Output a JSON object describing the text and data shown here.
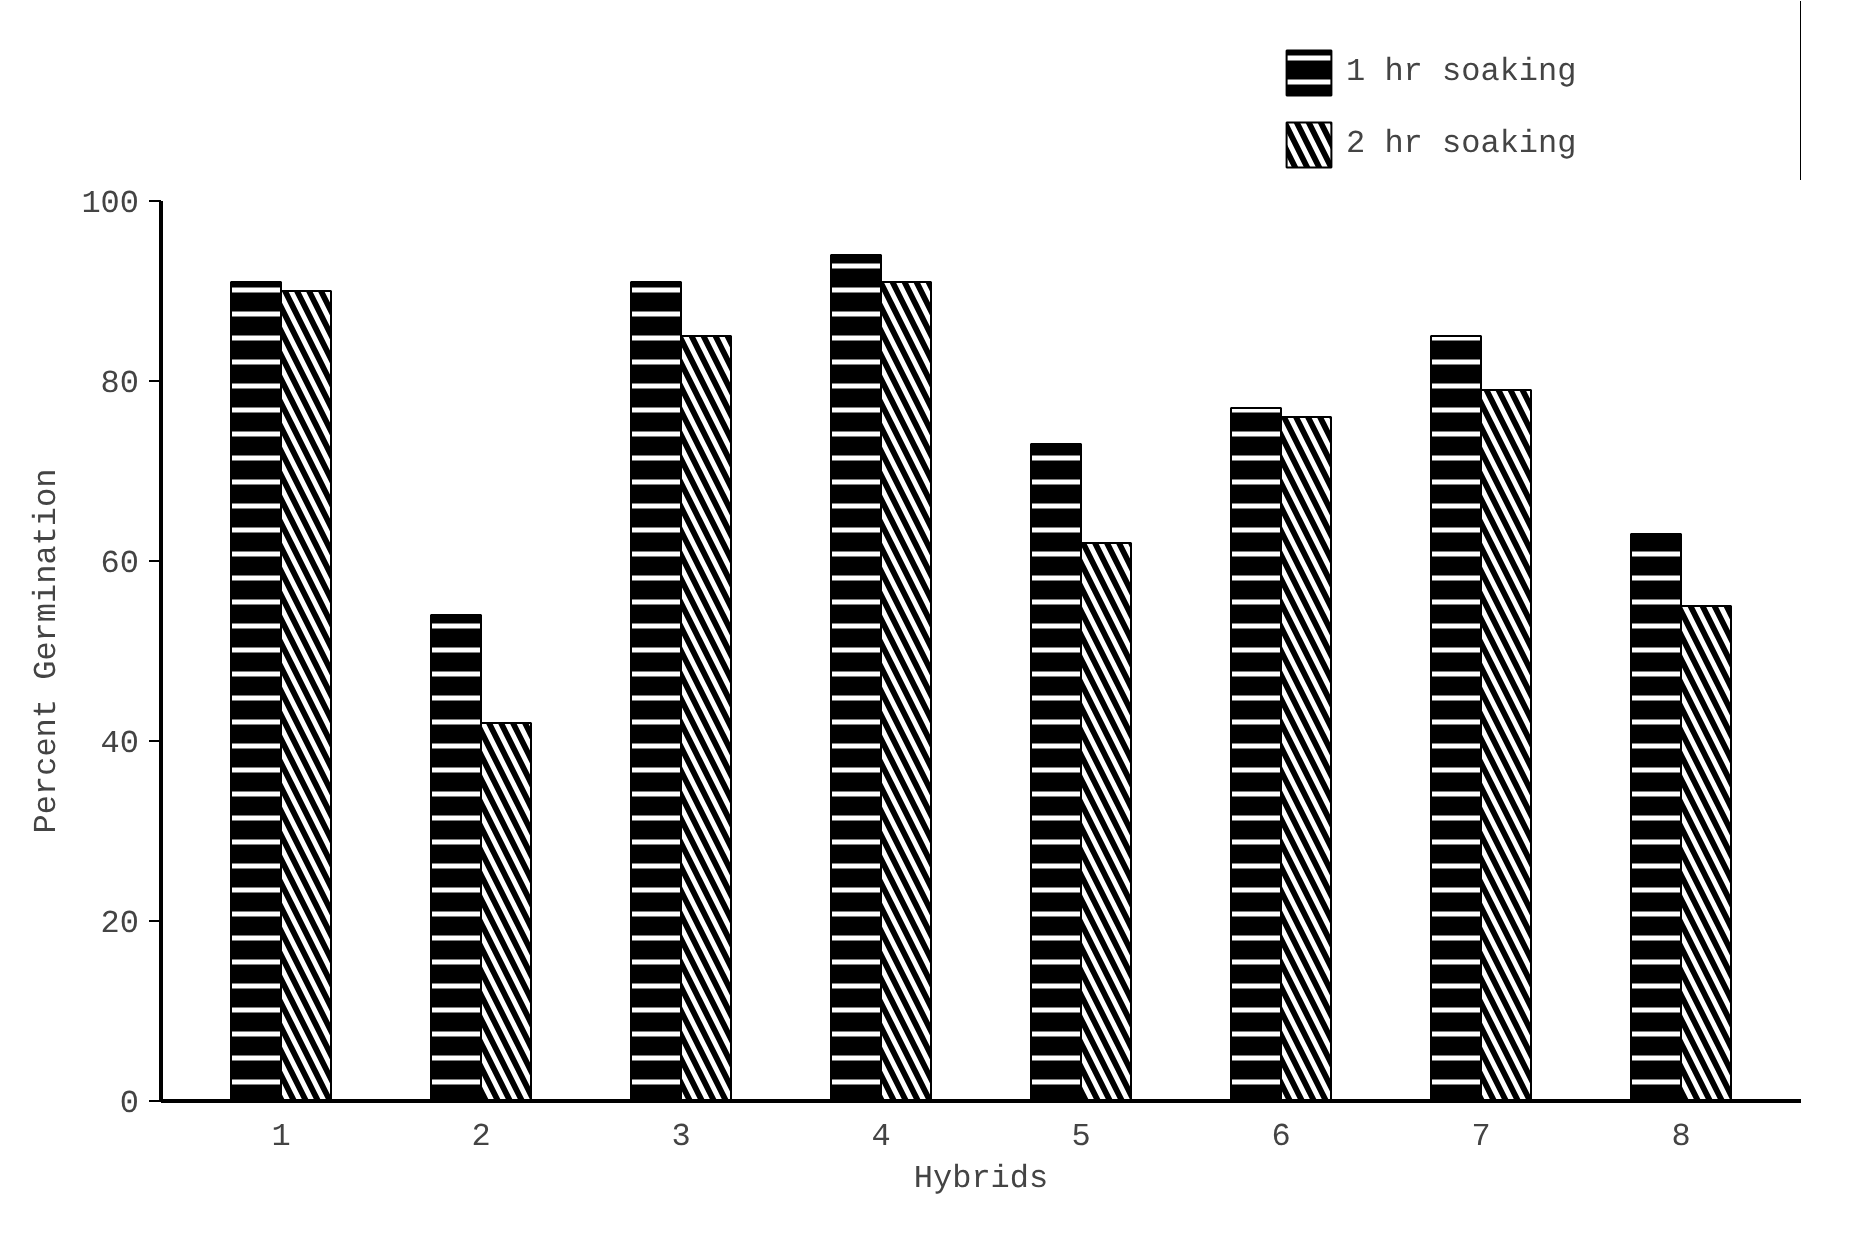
{
  "chart_data": {
    "type": "bar",
    "xlabel": "Hybrids",
    "ylabel": "Percent Germination",
    "categories": [
      "1",
      "2",
      "3",
      "4",
      "5",
      "6",
      "7",
      "8"
    ],
    "series": [
      {
        "name": "1 hr soaking",
        "color": "#000000",
        "values": [
          91,
          54,
          91,
          94,
          73,
          77,
          85,
          63
        ]
      },
      {
        "name": "2 hr soaking",
        "color": "#000000",
        "values": [
          90,
          42,
          85,
          91,
          62,
          76,
          79,
          55
        ]
      }
    ],
    "ylim": [
      0,
      100
    ],
    "yticks": [
      0,
      20,
      40,
      60,
      80,
      100
    ],
    "grid": false,
    "legend": "top right"
  }
}
